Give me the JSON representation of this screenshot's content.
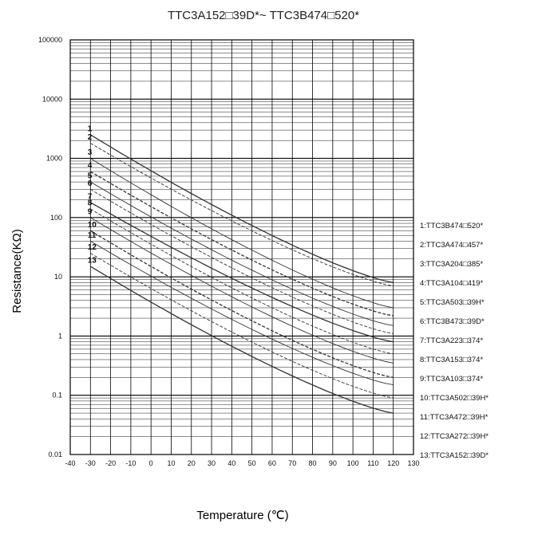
{
  "chart_data": {
    "type": "line",
    "title": "TTC3A152□39D*~ TTC3B474□520*",
    "xlabel": "Temperature (℃)",
    "ylabel": "Resistance(KΩ)",
    "xlim": [
      -40,
      130
    ],
    "ylim": [
      0.01,
      100000
    ],
    "yscale": "log",
    "grid": true,
    "legend_position": "right",
    "x_ticks": [
      "-40",
      "-30",
      "-20",
      "-10",
      "0",
      "10",
      "20",
      "30",
      "40",
      "50",
      "60",
      "70",
      "80",
      "90",
      "100",
      "110",
      "120",
      "130"
    ],
    "y_ticks": [
      "0.01",
      "0.1",
      "1",
      "10",
      "100",
      "1000",
      "10000",
      "100000"
    ],
    "series": [
      {
        "label": "1",
        "name": "1:TTC3B474□520*",
        "x": [
          -30,
          120
        ],
        "y": [
          2500,
          8
        ]
      },
      {
        "label": "2",
        "name": "2:TTC3A474□457*",
        "x": [
          -30,
          120
        ],
        "y": [
          1800,
          7
        ]
      },
      {
        "label": "3",
        "name": "3:TTC3A204□385*",
        "x": [
          -30,
          120
        ],
        "y": [
          1000,
          3
        ]
      },
      {
        "label": "4",
        "name": "4:TTC3A104□419*",
        "x": [
          -30,
          120
        ],
        "y": [
          600,
          2.2
        ]
      },
      {
        "label": "5",
        "name": "5:TTC3A503□39H*",
        "x": [
          -30,
          120
        ],
        "y": [
          400,
          1.5
        ]
      },
      {
        "label": "6",
        "name": "6:TTC3B473□39D*",
        "x": [
          -30,
          120
        ],
        "y": [
          300,
          1.1
        ]
      },
      {
        "label": "7",
        "name": "7:TTC3A223□374*",
        "x": [
          -30,
          120
        ],
        "y": [
          180,
          0.8
        ]
      },
      {
        "label": "8",
        "name": "8:TTC3A153□374*",
        "x": [
          -30,
          120
        ],
        "y": [
          140,
          0.5
        ]
      },
      {
        "label": "9",
        "name": "9:TTC3A103□374*",
        "x": [
          -30,
          120
        ],
        "y": [
          100,
          0.35
        ]
      },
      {
        "label": "10",
        "name": "10:TTC3A502□39H*",
        "x": [
          -30,
          120
        ],
        "y": [
          60,
          0.2
        ]
      },
      {
        "label": "11",
        "name": "11:TTC3A472□39H*",
        "x": [
          -30,
          120
        ],
        "y": [
          40,
          0.15
        ]
      },
      {
        "label": "12",
        "name": "12:TTC3A272□39H*",
        "x": [
          -30,
          120
        ],
        "y": [
          25,
          0.09
        ]
      },
      {
        "label": "13",
        "name": "13:TTC3A152□39D*",
        "x": [
          -30,
          120
        ],
        "y": [
          15,
          0.05
        ]
      }
    ]
  }
}
